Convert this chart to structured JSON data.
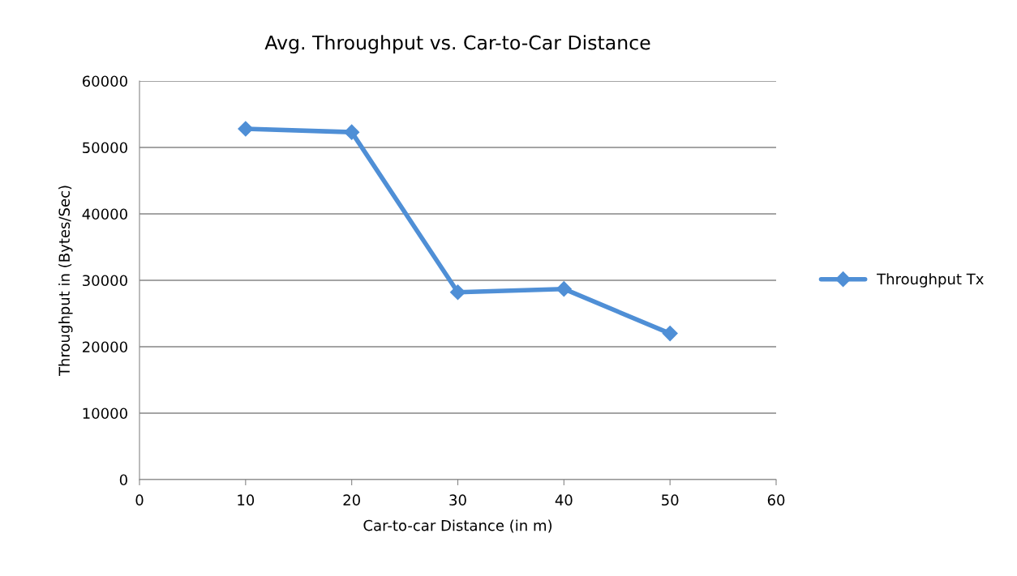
{
  "chart_data": {
    "type": "line",
    "title": "Avg. Throughput vs. Car-to-Car Distance",
    "xlabel": "Car-to-car Distance (in m)",
    "ylabel": "Throughput in (Bytes/Sec)",
    "x": [
      10,
      20,
      30,
      40,
      50
    ],
    "series": [
      {
        "name": "Throughput Tx",
        "color": "#4f8fd6",
        "values": [
          52800,
          52300,
          28200,
          28700,
          22000
        ]
      }
    ],
    "xlim": [
      0,
      60
    ],
    "xticks": [
      0,
      10,
      20,
      30,
      40,
      50,
      60
    ],
    "ylim": [
      0,
      60000
    ],
    "yticks": [
      0,
      10000,
      20000,
      30000,
      40000,
      50000,
      60000
    ],
    "grid": "y",
    "legend": "right",
    "marker": "diamond",
    "line_style": "solid"
  }
}
